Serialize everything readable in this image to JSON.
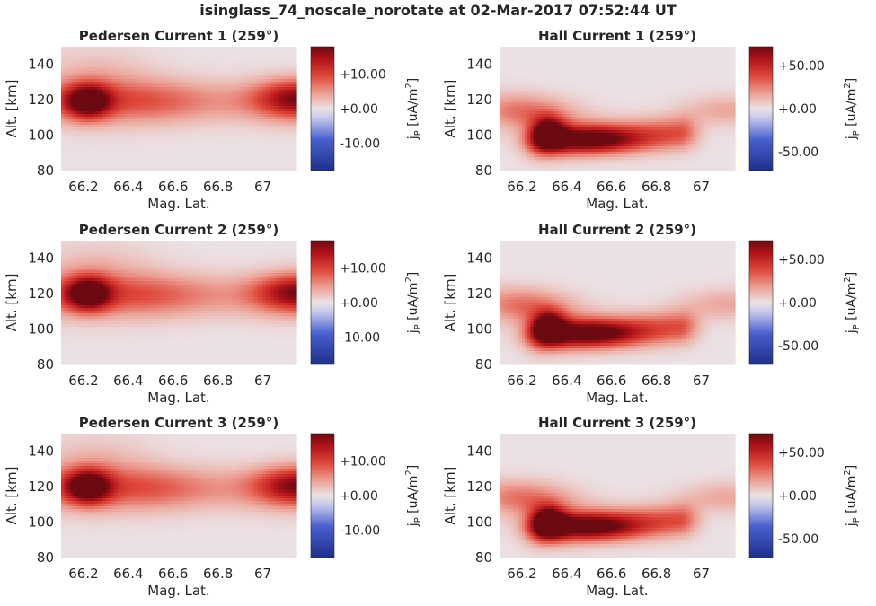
{
  "figure": {
    "suptitle": "isinglass_74_noscale_norotate at 02-Mar-2017 07:52:44 UT"
  },
  "colors": {
    "cmap_low": "#1d2f8c",
    "cmap_mid": "#ebe1e4",
    "cmap_high": "#6b0a10",
    "axis_text": "#262626"
  },
  "chart_data": [
    {
      "type": "heatmap",
      "title": "Pedersen Current 1 (259°)",
      "xlabel": "Mag. Lat.",
      "ylabel": "Alt. [km]",
      "xticks": [
        "66.2",
        "66.4",
        "66.6",
        "66.8",
        "67"
      ],
      "yticks": [
        "80",
        "100",
        "120",
        "140"
      ],
      "xlim": [
        66.1,
        67.15
      ],
      "ylim": [
        80,
        150
      ],
      "colorbar": {
        "label": "j_P [uA/m^2]",
        "ticks": [
          "+10.00",
          "+0.00",
          "-10.00"
        ],
        "tick_values": [
          10,
          0,
          -10
        ],
        "range": [
          -18,
          18
        ]
      },
      "field": {
        "kind": "pedersen",
        "peak_lat": 66.22,
        "peak_alt": 119,
        "peak_value": 18
      }
    },
    {
      "type": "heatmap",
      "title": "Hall Current 1 (259°)",
      "xlabel": "Mag. Lat.",
      "ylabel": "Alt. [km]",
      "xticks": [
        "66.2",
        "66.4",
        "66.6",
        "66.8",
        "67"
      ],
      "yticks": [
        "80",
        "100",
        "120",
        "140"
      ],
      "xlim": [
        66.1,
        67.15
      ],
      "ylim": [
        80,
        150
      ],
      "colorbar": {
        "label": "j_P [uA/m^2]",
        "ticks": [
          "+50.00",
          "+0.00",
          "-50.00"
        ],
        "tick_values": [
          50,
          0,
          -50
        ],
        "range": [
          -72,
          72
        ]
      },
      "field": {
        "kind": "hall",
        "peak_lat": 66.32,
        "peak_alt": 101,
        "peak_value": 72
      }
    },
    {
      "type": "heatmap",
      "title": "Pedersen Current 2 (259°)",
      "xlabel": "Mag. Lat.",
      "ylabel": "Alt. [km]",
      "xticks": [
        "66.2",
        "66.4",
        "66.6",
        "66.8",
        "67"
      ],
      "yticks": [
        "80",
        "100",
        "120",
        "140"
      ],
      "xlim": [
        66.1,
        67.15
      ],
      "ylim": [
        80,
        150
      ],
      "colorbar": {
        "label": "j_P [uA/m^2]",
        "ticks": [
          "+10.00",
          "+0.00",
          "-10.00"
        ],
        "tick_values": [
          10,
          0,
          -10
        ],
        "range": [
          -18,
          18
        ]
      },
      "field": {
        "kind": "pedersen",
        "peak_lat": 66.22,
        "peak_alt": 120,
        "peak_value": 18
      }
    },
    {
      "type": "heatmap",
      "title": "Hall Current 2 (259°)",
      "xlabel": "Mag. Lat.",
      "ylabel": "Alt. [km]",
      "xticks": [
        "66.2",
        "66.4",
        "66.6",
        "66.8",
        "67"
      ],
      "yticks": [
        "80",
        "100",
        "120",
        "140"
      ],
      "xlim": [
        66.1,
        67.15
      ],
      "ylim": [
        80,
        150
      ],
      "colorbar": {
        "label": "j_P [uA/m^2]",
        "ticks": [
          "+50.00",
          "+0.00",
          "-50.00"
        ],
        "tick_values": [
          50,
          0,
          -50
        ],
        "range": [
          -72,
          72
        ]
      },
      "field": {
        "kind": "hall",
        "peak_lat": 66.32,
        "peak_alt": 101,
        "peak_value": 72
      }
    },
    {
      "type": "heatmap",
      "title": "Pedersen Current 3 (259°)",
      "xlabel": "Mag. Lat.",
      "ylabel": "Alt. [km]",
      "xticks": [
        "66.2",
        "66.4",
        "66.6",
        "66.8",
        "67"
      ],
      "yticks": [
        "80",
        "100",
        "120",
        "140"
      ],
      "xlim": [
        66.1,
        67.15
      ],
      "ylim": [
        80,
        150
      ],
      "colorbar": {
        "label": "j_P [uA/m^2]",
        "ticks": [
          "+10.00",
          "+0.00",
          "-10.00"
        ],
        "tick_values": [
          10,
          0,
          -10
        ],
        "range": [
          -18,
          18
        ]
      },
      "field": {
        "kind": "pedersen",
        "peak_lat": 66.22,
        "peak_alt": 120,
        "peak_value": 18
      }
    },
    {
      "type": "heatmap",
      "title": "Hall Current 3 (259°)",
      "xlabel": "Mag. Lat.",
      "ylabel": "Alt. [km]",
      "xticks": [
        "66.2",
        "66.4",
        "66.6",
        "66.8",
        "67"
      ],
      "yticks": [
        "80",
        "100",
        "120",
        "140"
      ],
      "xlim": [
        66.1,
        67.15
      ],
      "ylim": [
        80,
        150
      ],
      "colorbar": {
        "label": "j_P [uA/m^2]",
        "ticks": [
          "+50.00",
          "+0.00",
          "-50.00"
        ],
        "tick_values": [
          50,
          0,
          -50
        ],
        "range": [
          -72,
          72
        ]
      },
      "field": {
        "kind": "hall",
        "peak_lat": 66.32,
        "peak_alt": 100,
        "peak_value": 72
      }
    }
  ]
}
